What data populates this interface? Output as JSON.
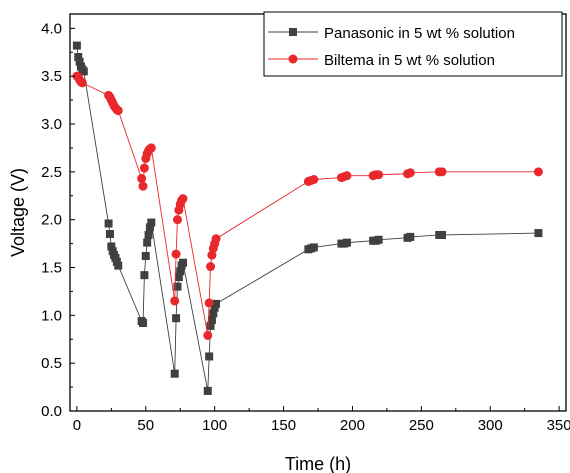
{
  "chart_data": {
    "type": "line",
    "title": "",
    "xlabel": "Time (h)",
    "ylabel": "Voltage (V)",
    "xlim": [
      -5,
      355
    ],
    "ylim": [
      0.0,
      4.15
    ],
    "xticks": [
      0,
      50,
      100,
      150,
      200,
      250,
      300,
      350
    ],
    "yticks": [
      0.0,
      0.5,
      1.0,
      1.5,
      2.0,
      2.5,
      3.0,
      3.5,
      4.0
    ],
    "xtick_labels": [
      "0",
      "50",
      "100",
      "150",
      "200",
      "250",
      "300",
      "350"
    ],
    "ytick_labels": [
      "0.0",
      "0.5",
      "1.0",
      "1.5",
      "2.0",
      "2.5",
      "3.0",
      "3.5",
      "4.0"
    ],
    "grid": false,
    "legend_position": "top-right",
    "series": [
      {
        "name": "Panasonic in 5 wt % solution",
        "color": "#404040",
        "marker": "square",
        "x": [
          0,
          1,
          2,
          3,
          4,
          5,
          23,
          24,
          25,
          26,
          27,
          28,
          29,
          30,
          47,
          48,
          49,
          50,
          51,
          52,
          53,
          54,
          71,
          72,
          73,
          74,
          75,
          76,
          77,
          95,
          96,
          97,
          98,
          99,
          100,
          101,
          168,
          170,
          172,
          192,
          194,
          196,
          215,
          217,
          219,
          240,
          242,
          263,
          265,
          335
        ],
        "y": [
          3.82,
          3.7,
          3.65,
          3.6,
          3.57,
          3.55,
          1.96,
          1.85,
          1.72,
          1.67,
          1.63,
          1.6,
          1.56,
          1.52,
          0.94,
          0.92,
          1.42,
          1.62,
          1.76,
          1.84,
          1.92,
          1.97,
          0.39,
          0.97,
          1.3,
          1.4,
          1.46,
          1.52,
          1.55,
          0.21,
          0.57,
          0.89,
          0.95,
          1.02,
          1.08,
          1.12,
          1.69,
          1.7,
          1.71,
          1.75,
          1.75,
          1.76,
          1.78,
          1.78,
          1.79,
          1.81,
          1.82,
          1.84,
          1.84,
          1.86
        ]
      },
      {
        "name": "Biltema in 5 wt % solution",
        "color": "#e8282b",
        "marker": "circle",
        "x": [
          0,
          1,
          2,
          3,
          4,
          23,
          24,
          25,
          26,
          27,
          28,
          29,
          30,
          47,
          48,
          49,
          50,
          51,
          52,
          53,
          54,
          71,
          72,
          73,
          74,
          75,
          76,
          77,
          95,
          96,
          97,
          98,
          99,
          100,
          101,
          168,
          170,
          172,
          192,
          194,
          196,
          215,
          217,
          219,
          240,
          242,
          263,
          265,
          335
        ],
        "y": [
          3.5,
          3.49,
          3.46,
          3.44,
          3.43,
          3.3,
          3.28,
          3.25,
          3.22,
          3.19,
          3.17,
          3.15,
          3.14,
          2.43,
          2.35,
          2.54,
          2.64,
          2.69,
          2.72,
          2.74,
          2.75,
          1.15,
          1.64,
          2.0,
          2.1,
          2.16,
          2.2,
          2.22,
          0.79,
          1.13,
          1.51,
          1.63,
          1.7,
          1.75,
          1.8,
          2.4,
          2.41,
          2.42,
          2.44,
          2.45,
          2.46,
          2.46,
          2.47,
          2.47,
          2.48,
          2.49,
          2.5,
          2.5,
          2.5
        ]
      }
    ]
  }
}
